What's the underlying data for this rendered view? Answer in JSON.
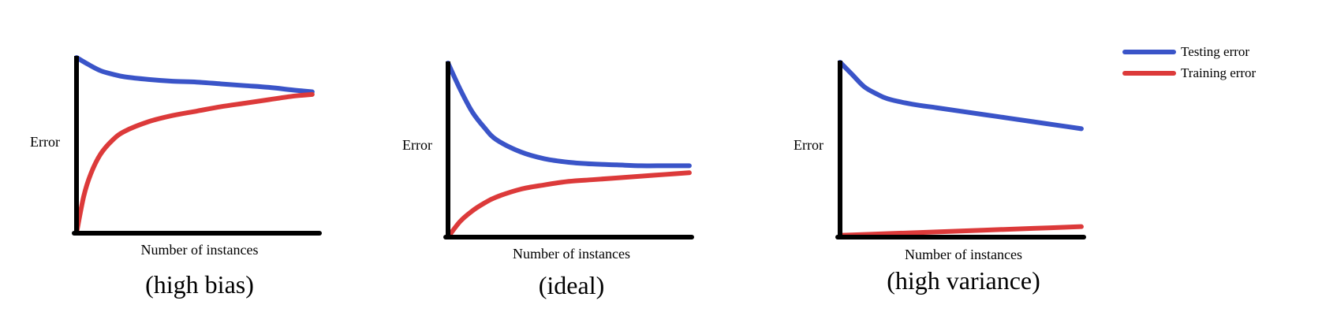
{
  "colors": {
    "testing": "#3a54c8",
    "training": "#dc3a3a",
    "axis": "#000000"
  },
  "legend": [
    {
      "series": "testing",
      "label": "Testing error",
      "color_key": "testing"
    },
    {
      "series": "training",
      "label": "Training error",
      "color_key": "training"
    }
  ],
  "chart_data": [
    {
      "type": "line",
      "caption": "(high bias)",
      "xlabel": "Number of instances",
      "ylabel": "Error",
      "xlim": [
        0,
        10
      ],
      "ylim": [
        0,
        10
      ],
      "grid": false,
      "series": [
        {
          "name": "Testing error",
          "color_key": "testing",
          "x": [
            0,
            0.5,
            1,
            1.5,
            2,
            3,
            4,
            5,
            6,
            7,
            8,
            9,
            9.8
          ],
          "y": [
            10,
            9.6,
            9.25,
            9.05,
            8.9,
            8.75,
            8.65,
            8.6,
            8.5,
            8.4,
            8.3,
            8.15,
            8.05
          ]
        },
        {
          "name": "Training error",
          "color_key": "training",
          "x": [
            0,
            0.3,
            0.6,
            1,
            1.5,
            2,
            3,
            4,
            5,
            6,
            7,
            8,
            9,
            9.8
          ],
          "y": [
            0,
            2.1,
            3.4,
            4.5,
            5.3,
            5.8,
            6.35,
            6.7,
            6.95,
            7.2,
            7.4,
            7.6,
            7.8,
            7.9
          ]
        }
      ]
    },
    {
      "type": "line",
      "caption": "(ideal)",
      "xlabel": "Number of instances",
      "ylabel": "Error",
      "xlim": [
        0,
        10
      ],
      "ylim": [
        0,
        10
      ],
      "grid": false,
      "series": [
        {
          "name": "Testing error",
          "color_key": "testing",
          "x": [
            0,
            0.5,
            1,
            1.5,
            2,
            3,
            4,
            5,
            6,
            7,
            8,
            9,
            10
          ],
          "y": [
            10,
            8.5,
            7.2,
            6.3,
            5.6,
            4.9,
            4.5,
            4.3,
            4.2,
            4.15,
            4.1,
            4.1,
            4.1
          ]
        },
        {
          "name": "Training error",
          "color_key": "training",
          "x": [
            0,
            0.5,
            1,
            1.5,
            2,
            3,
            4,
            5,
            6,
            7,
            8,
            9,
            10
          ],
          "y": [
            0,
            0.9,
            1.5,
            1.95,
            2.3,
            2.75,
            3.0,
            3.2,
            3.3,
            3.4,
            3.5,
            3.6,
            3.7
          ]
        }
      ]
    },
    {
      "type": "line",
      "caption": "(high variance)",
      "xlabel": "Number of instances",
      "ylabel": "Error",
      "xlim": [
        0,
        10
      ],
      "ylim": [
        0,
        10
      ],
      "grid": false,
      "series": [
        {
          "name": "Testing error",
          "color_key": "testing",
          "x": [
            0,
            0.5,
            1,
            1.5,
            2,
            3,
            4,
            5,
            6,
            7,
            8,
            9,
            10
          ],
          "y": [
            10,
            9.3,
            8.6,
            8.2,
            7.9,
            7.6,
            7.4,
            7.2,
            7.0,
            6.8,
            6.6,
            6.4,
            6.2
          ]
        },
        {
          "name": "Training error",
          "color_key": "training",
          "x": [
            0,
            2,
            4,
            6,
            8,
            10
          ],
          "y": [
            0.1,
            0.2,
            0.3,
            0.4,
            0.5,
            0.6
          ]
        }
      ]
    }
  ]
}
